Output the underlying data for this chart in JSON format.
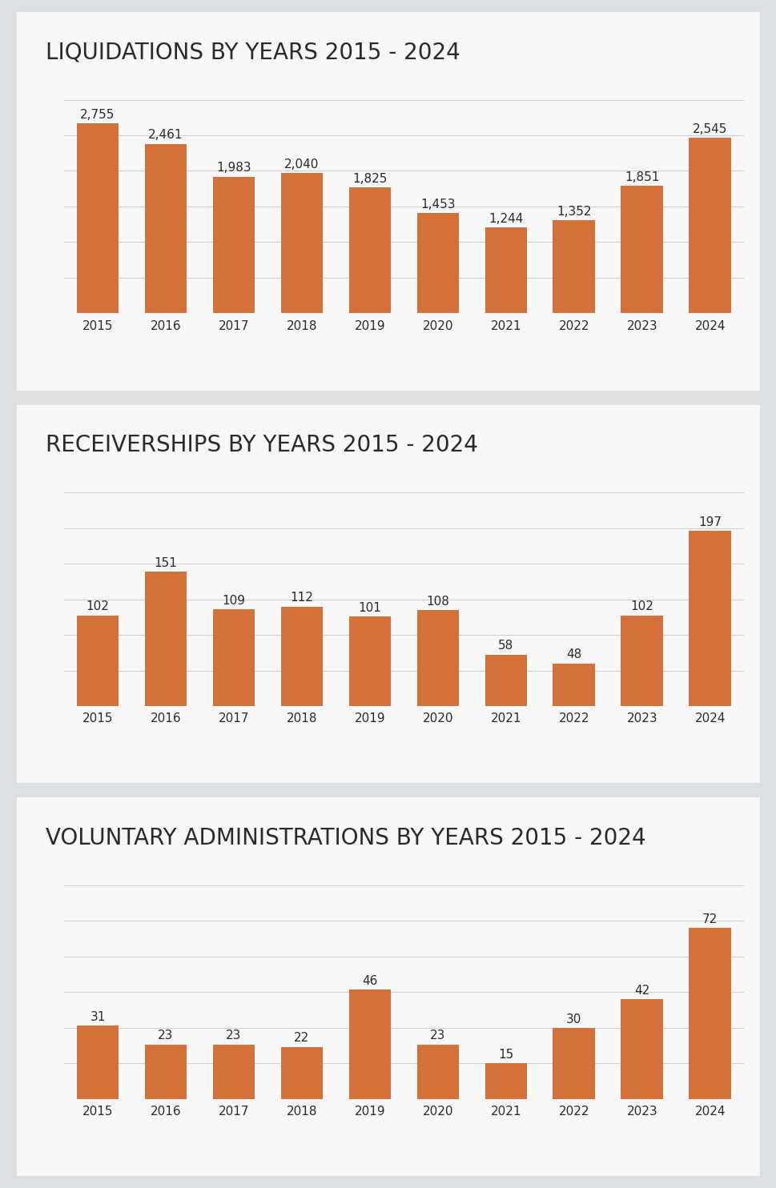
{
  "charts": [
    {
      "title": "LIQUIDATIONS BY YEARS 2015 - 2024",
      "years": [
        "2015",
        "2016",
        "2017",
        "2018",
        "2019",
        "2020",
        "2021",
        "2022",
        "2023",
        "2024"
      ],
      "values": [
        2755,
        2461,
        1983,
        2040,
        1825,
        1453,
        1244,
        1352,
        1851,
        2545
      ],
      "ylim": [
        0,
        3100
      ],
      "n_gridlines": 6
    },
    {
      "title": "RECEIVERSHIPS BY YEARS 2015 - 2024",
      "years": [
        "2015",
        "2016",
        "2017",
        "2018",
        "2019",
        "2020",
        "2021",
        "2022",
        "2023",
        "2024"
      ],
      "values": [
        102,
        151,
        109,
        112,
        101,
        108,
        58,
        48,
        102,
        197
      ],
      "ylim": [
        0,
        240
      ],
      "n_gridlines": 6
    },
    {
      "title": "VOLUNTARY ADMINISTRATIONS BY YEARS 2015 - 2024",
      "years": [
        "2015",
        "2016",
        "2017",
        "2018",
        "2019",
        "2020",
        "2021",
        "2022",
        "2023",
        "2024"
      ],
      "values": [
        31,
        23,
        23,
        22,
        46,
        23,
        15,
        30,
        42,
        72
      ],
      "ylim": [
        0,
        90
      ],
      "n_gridlines": 6
    }
  ],
  "bar_color": "#d4703a",
  "background_color": "#dde0e3",
  "panel_background": "#f7f7f7",
  "title_fontsize": 20,
  "tick_fontsize": 11,
  "value_fontsize": 11,
  "grid_color": "#cccccc",
  "title_color": "#2a2a2a",
  "label_color": "#2a2a2a",
  "fig_width": 9.7,
  "fig_height": 14.84,
  "dpi": 100
}
